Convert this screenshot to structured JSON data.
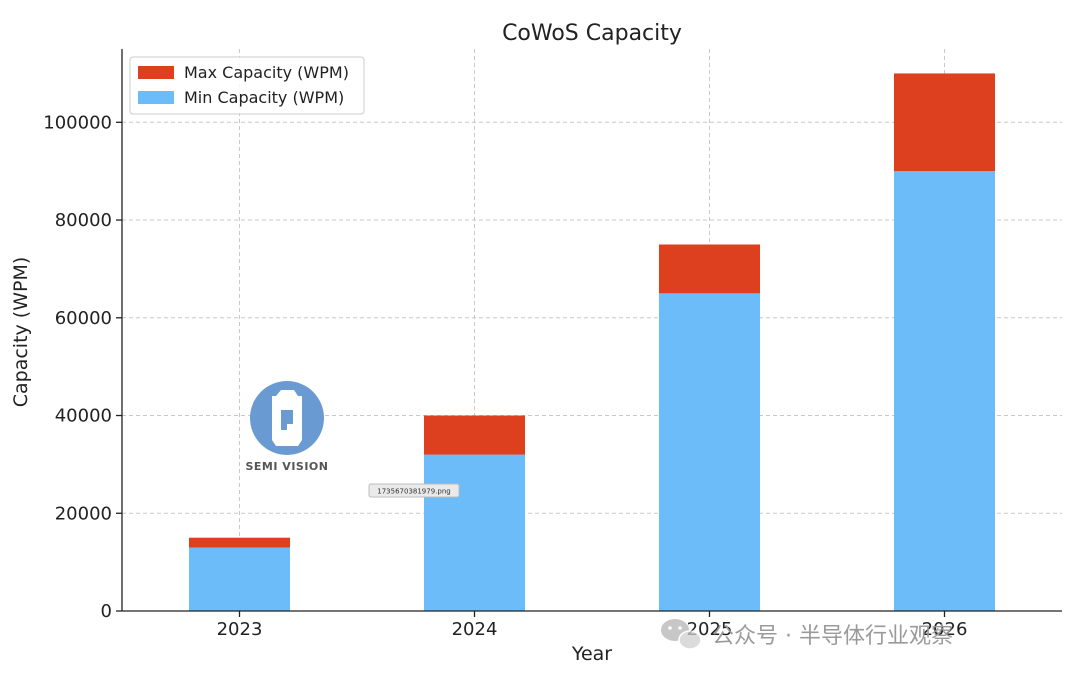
{
  "chart_data": {
    "type": "bar",
    "stacked": true,
    "title": "CoWoS Capacity",
    "xlabel": "Year",
    "ylabel": "Capacity (WPM)",
    "categories": [
      "2023",
      "2024",
      "2025",
      "2026"
    ],
    "series": [
      {
        "name": "Min Capacity (WPM)",
        "values": [
          13000,
          32000,
          65000,
          90000
        ],
        "color": "#6bbcf8"
      },
      {
        "name": "Max Capacity (WPM)",
        "values": [
          2000,
          8000,
          10000,
          20000
        ],
        "color": "#dc401e"
      }
    ],
    "legend_order": [
      "Max Capacity (WPM)",
      "Min Capacity (WPM)"
    ],
    "ylim": [
      0,
      115000
    ],
    "yticks": [
      0,
      20000,
      40000,
      60000,
      80000,
      100000
    ],
    "grid": true,
    "legend_position": "top-left"
  },
  "overlay": {
    "logo_label": "SEMI VISION",
    "file_tag": "1735670381979.png",
    "watermark": "公众号 · 半导体行业观察"
  },
  "colors": {
    "axis": "#222222",
    "grid": "#c8c8c8",
    "logo": "#6a9ad2"
  }
}
